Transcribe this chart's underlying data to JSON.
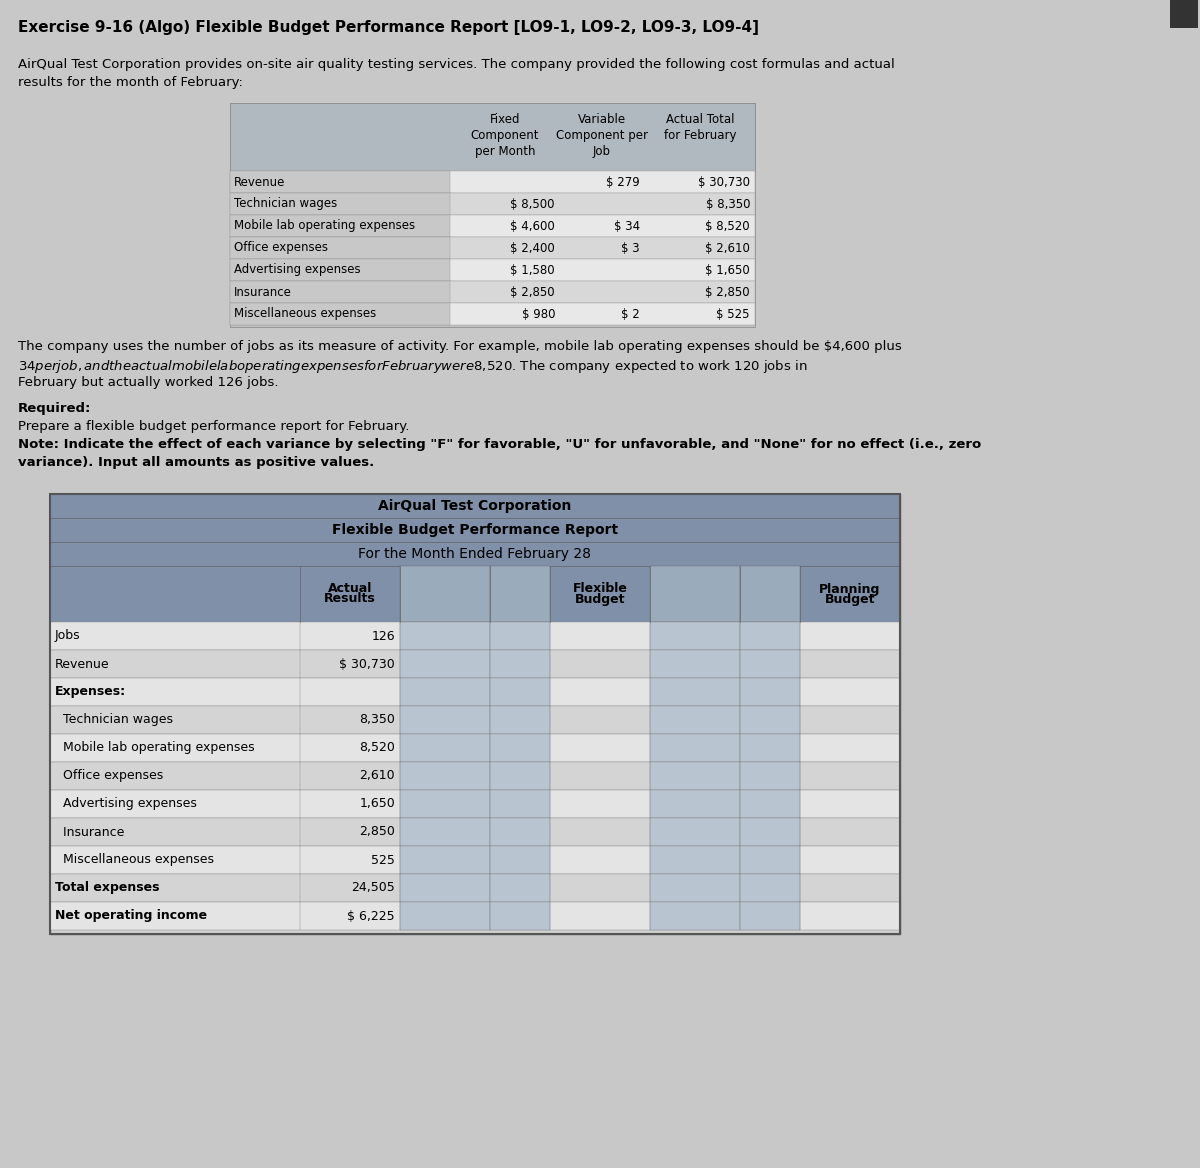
{
  "main_title": "Exercise 9-16 (Algo) Flexible Budget Performance Report [LO9-1, LO9-2, LO9-3, LO9-4]",
  "intro_text": "AirQual Test Corporation provides on-site air quality testing services. The company provided the following cost formulas and actual\nresults for the month of February:",
  "top_table": {
    "col_headers": [
      "",
      "Fixed\nComponent\nper Month",
      "Variable\nComponent per\nJob",
      "Actual Total\nfor February"
    ],
    "rows": [
      [
        "Revenue",
        "",
        "$ 279",
        "$ 30,730"
      ],
      [
        "Technician wages",
        "$ 8,500",
        "",
        "$ 8,350"
      ],
      [
        "Mobile lab operating expenses",
        "$ 4,600",
        "$ 34",
        "$ 8,520"
      ],
      [
        "Office expenses",
        "$ 2,400",
        "$ 3",
        "$ 2,610"
      ],
      [
        "Advertising expenses",
        "$ 1,580",
        "",
        "$ 1,650"
      ],
      [
        "Insurance",
        "$ 2,850",
        "",
        "$ 2,850"
      ],
      [
        "Miscellaneous expenses",
        "$ 980",
        "$ 2",
        "$ 525"
      ]
    ]
  },
  "middle_text1": "The company uses the number of jobs as its measure of activity. For example, mobile lab operating expenses should be $4,600 plus\n$34 per job, and the actual mobile lab operating expenses for February were $8,520. The company expected to work 120 jobs in\nFebruary but actually worked 126 jobs.",
  "required_text": "Required:",
  "prepare_text": "Prepare a flexible budget performance report for February.",
  "note_text": "Note: Indicate the effect of each variance by selecting \"F\" for favorable, \"U\" for unfavorable, and \"None\" for no effect (i.e., zero\nvariance). Input all amounts as positive values.",
  "report_title1": "AirQual Test Corporation",
  "report_title2": "Flexible Budget Performance Report",
  "report_title3": "For the Month Ended February 28",
  "bottom_table": {
    "col_headers": [
      "",
      "Actual\nResults",
      "",
      "",
      "Flexible\nBudget",
      "",
      "",
      "Planning\nBudget"
    ],
    "rows": [
      [
        "Jobs",
        "126",
        "",
        "",
        "",
        "",
        "",
        ""
      ],
      [
        "Revenue",
        "$ 30,730",
        "",
        "",
        "",
        "",
        "",
        ""
      ],
      [
        "Expenses:",
        "",
        "",
        "",
        "",
        "",
        "",
        ""
      ],
      [
        "  Technician wages",
        "8,350",
        "",
        "",
        "",
        "",
        "",
        ""
      ],
      [
        "  Mobile lab operating expenses",
        "8,520",
        "",
        "",
        "",
        "",
        "",
        ""
      ],
      [
        "  Office expenses",
        "2,610",
        "",
        "",
        "",
        "",
        "",
        ""
      ],
      [
        "  Advertising expenses",
        "1,650",
        "",
        "",
        "",
        "",
        "",
        ""
      ],
      [
        "  Insurance",
        "2,850",
        "",
        "",
        "",
        "",
        "",
        ""
      ],
      [
        "  Miscellaneous expenses",
        "525",
        "",
        "",
        "",
        "",
        "",
        ""
      ],
      [
        "Total expenses",
        "24,505",
        "",
        "",
        "",
        "",
        "",
        ""
      ],
      [
        "Net operating income",
        "$ 6,225",
        "",
        "",
        "",
        "",
        "",
        ""
      ]
    ]
  },
  "bg_color": "#d8d8d8",
  "page_bg": "#c8c8c8",
  "table_header_bg": "#8090a0",
  "table_row_bg1": "#e8e8e8",
  "table_row_bg2": "#d0d0d0",
  "table_border": "#888888",
  "report_header_bg": "#7080a0",
  "report_row_light": "#e0e0e0",
  "report_row_dark": "#c8c8c8",
  "report_col_shaded": "#b0b8c8",
  "white": "#ffffff"
}
